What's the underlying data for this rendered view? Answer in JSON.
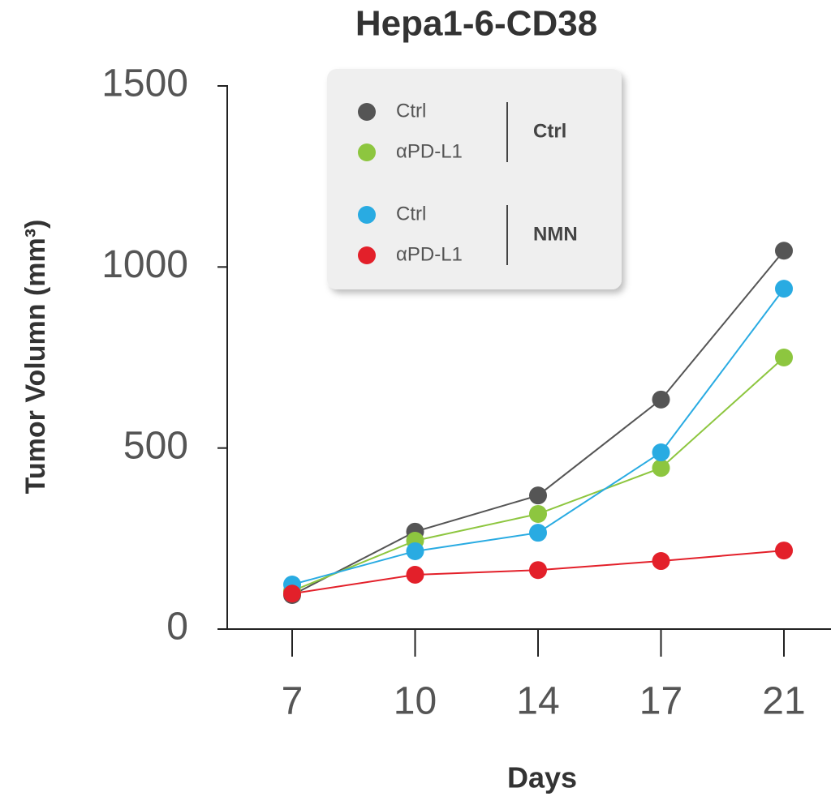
{
  "chart_data": {
    "type": "line",
    "title": "Hepa1-6-CD38",
    "x_label": "Days",
    "y_label": "Tumor Volumn (mm³)",
    "categories": [
      "7",
      "10",
      "14",
      "17",
      "21"
    ],
    "series": [
      {
        "name": "Ctrl",
        "group": "Ctrl",
        "color": "#555555",
        "values": [
          94,
          269,
          369,
          634,
          1045
        ]
      },
      {
        "name": "αPD-L1",
        "group": "Ctrl",
        "color": "#8dc63f",
        "values": [
          105,
          244,
          318,
          445,
          750
        ]
      },
      {
        "name": "Ctrl",
        "group": "NMN",
        "color": "#29abe2",
        "values": [
          123,
          215,
          266,
          488,
          940
        ]
      },
      {
        "name": "αPD-L1",
        "group": "NMN",
        "color": "#e3202a",
        "values": [
          98,
          150,
          163,
          188,
          217
        ]
      }
    ],
    "ylim": [
      0,
      1500
    ],
    "yticks": [
      0,
      500,
      1000,
      1500
    ]
  }
}
